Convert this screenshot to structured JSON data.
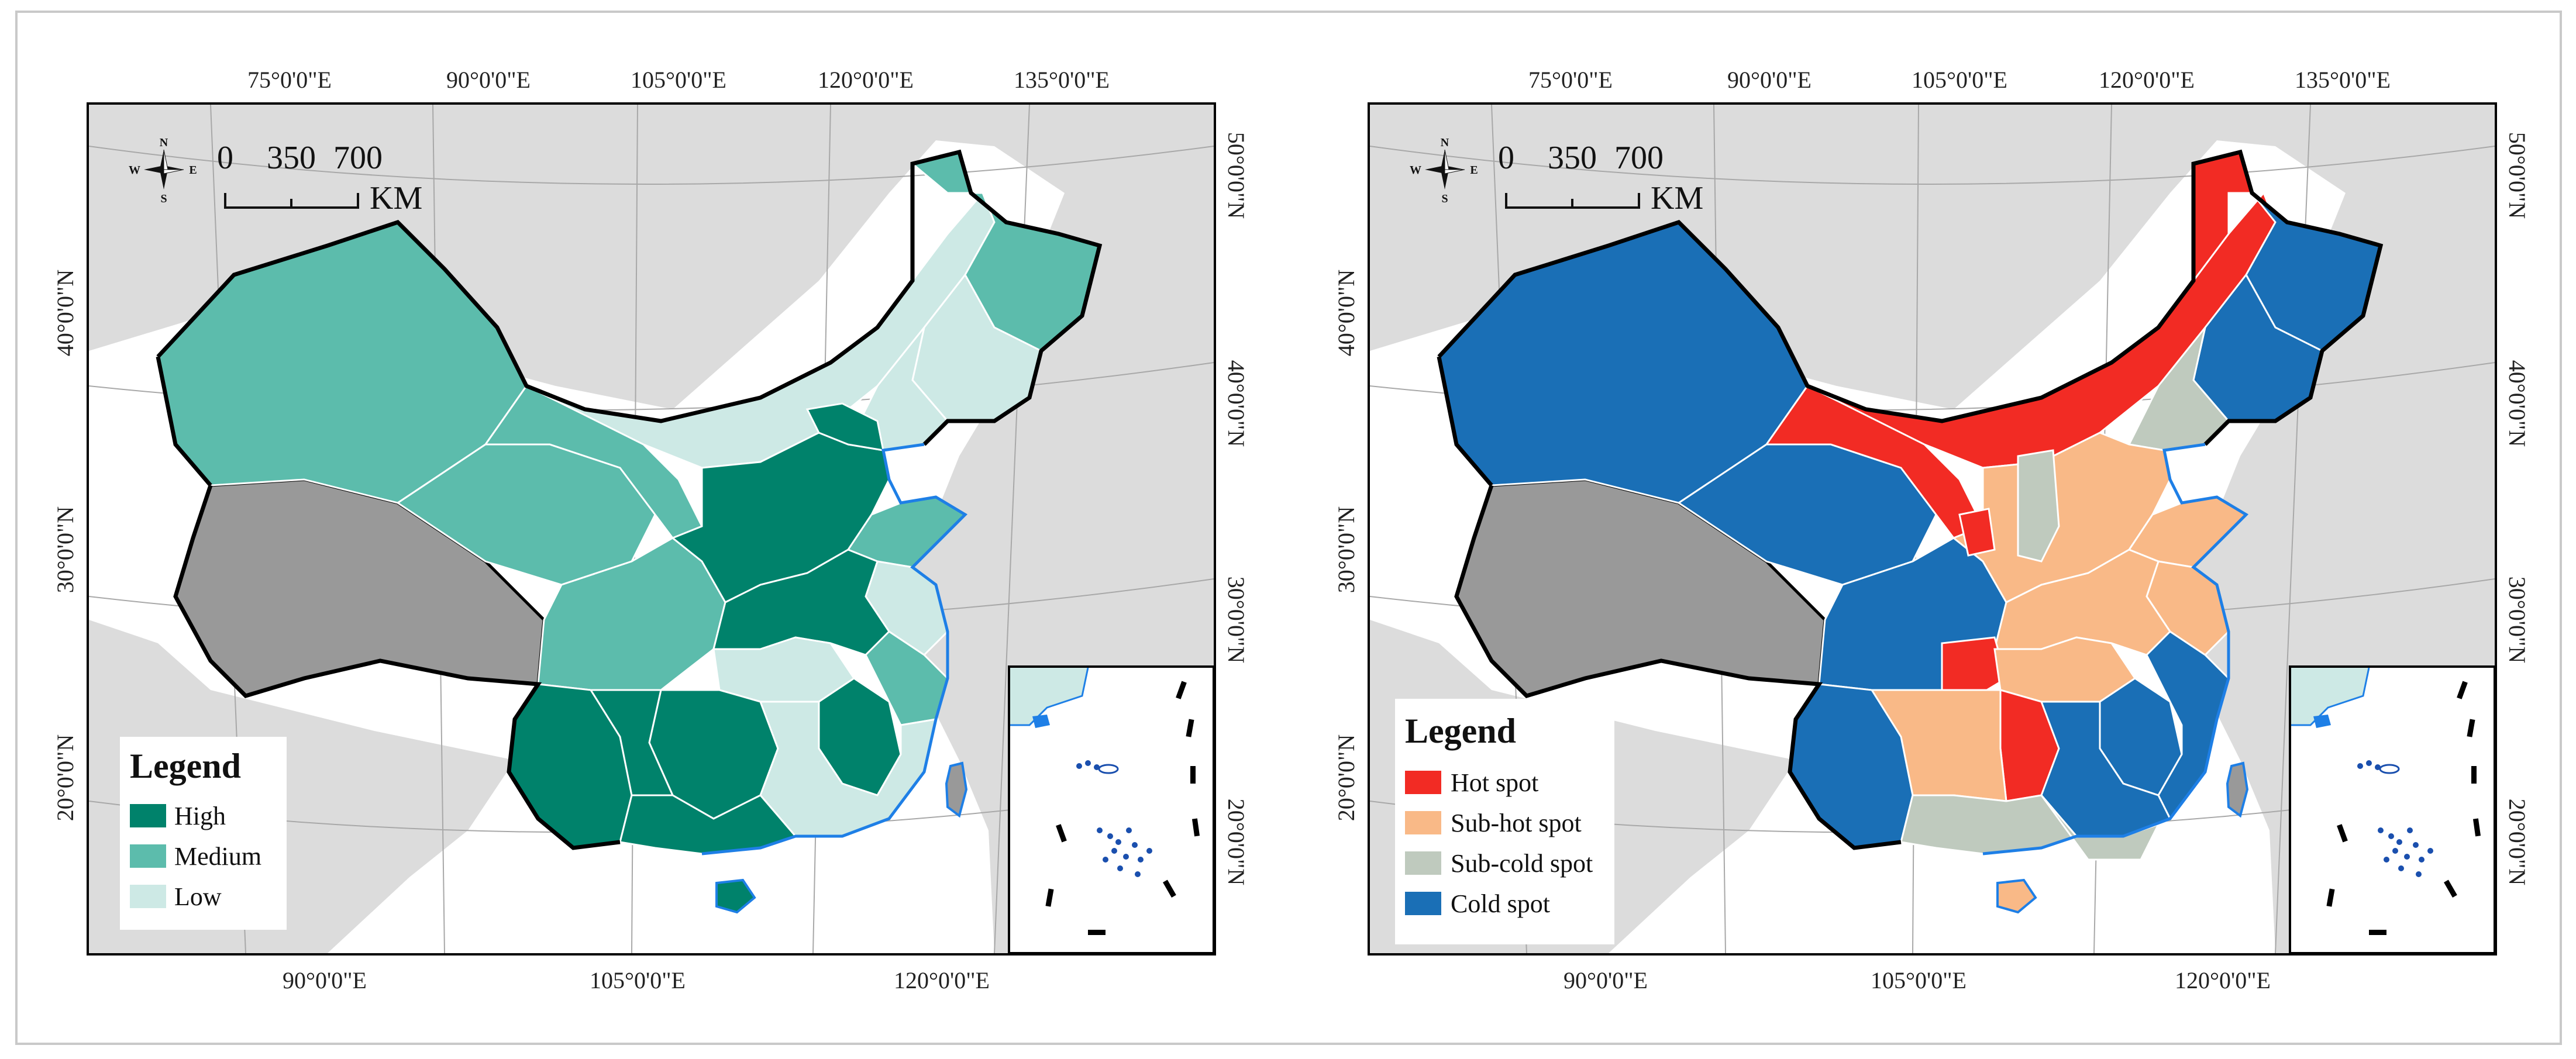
{
  "maps": [
    {
      "id": "left",
      "lon_top": [
        "75°0'0\"E",
        "90°0'0\"E",
        "105°0'0\"E",
        "120°0'0\"E",
        "135°0'0\"E"
      ],
      "lon_bottom": [
        "90°0'0\"E",
        "105°0'0\"E",
        "120°0'0\"E"
      ],
      "lat_left": [
        "40°0'0\"N",
        "30°0'0\"N",
        "20°0'0\"N"
      ],
      "lat_right": [
        "50°0'0\"N",
        "40°0'0\"N",
        "30°0'0\"N",
        "20°0'0\"N"
      ],
      "scale": {
        "labels": [
          "0",
          "350",
          "700"
        ],
        "unit": "KM"
      },
      "compass": {
        "n": "N",
        "s": "S",
        "e": "E",
        "w": "W"
      },
      "legend": {
        "title": "Legend",
        "items": [
          {
            "label": "High",
            "color": "#00826b"
          },
          {
            "label": "Medium",
            "color": "#5cbcac"
          },
          {
            "label": "Low",
            "color": "#cde9e5"
          }
        ]
      }
    },
    {
      "id": "right",
      "lon_top": [
        "75°0'0\"E",
        "90°0'0\"E",
        "105°0'0\"E",
        "120°0'0\"E",
        "135°0'0\"E"
      ],
      "lon_bottom": [
        "90°0'0\"E",
        "105°0'0\"E",
        "120°0'0\"E"
      ],
      "lat_left": [
        "40°0'0\"N",
        "30°0'0\"N",
        "20°0'0\"N"
      ],
      "lat_right": [
        "50°0'0\"N",
        "40°0'0\"N",
        "30°0'0\"N",
        "20°0'0\"N"
      ],
      "scale": {
        "labels": [
          "0",
          "350",
          "700"
        ],
        "unit": "KM"
      },
      "compass": {
        "n": "N",
        "s": "S",
        "e": "E",
        "w": "W"
      },
      "legend": {
        "title": "Legend",
        "items": [
          {
            "label": "Hot spot",
            "color": "#f22b24"
          },
          {
            "label": "Sub-hot spot",
            "color": "#f9b987"
          },
          {
            "label": "Sub-cold spot",
            "color": "#bfcabe"
          },
          {
            "label": "Cold spot",
            "color": "#1a6fb6"
          }
        ]
      }
    }
  ],
  "colors": {
    "land_bg": "#dcdcdc",
    "no_data": "#999999",
    "water_line": "#1e7fe6",
    "border": "#000000",
    "province_line": "#ffffff"
  }
}
